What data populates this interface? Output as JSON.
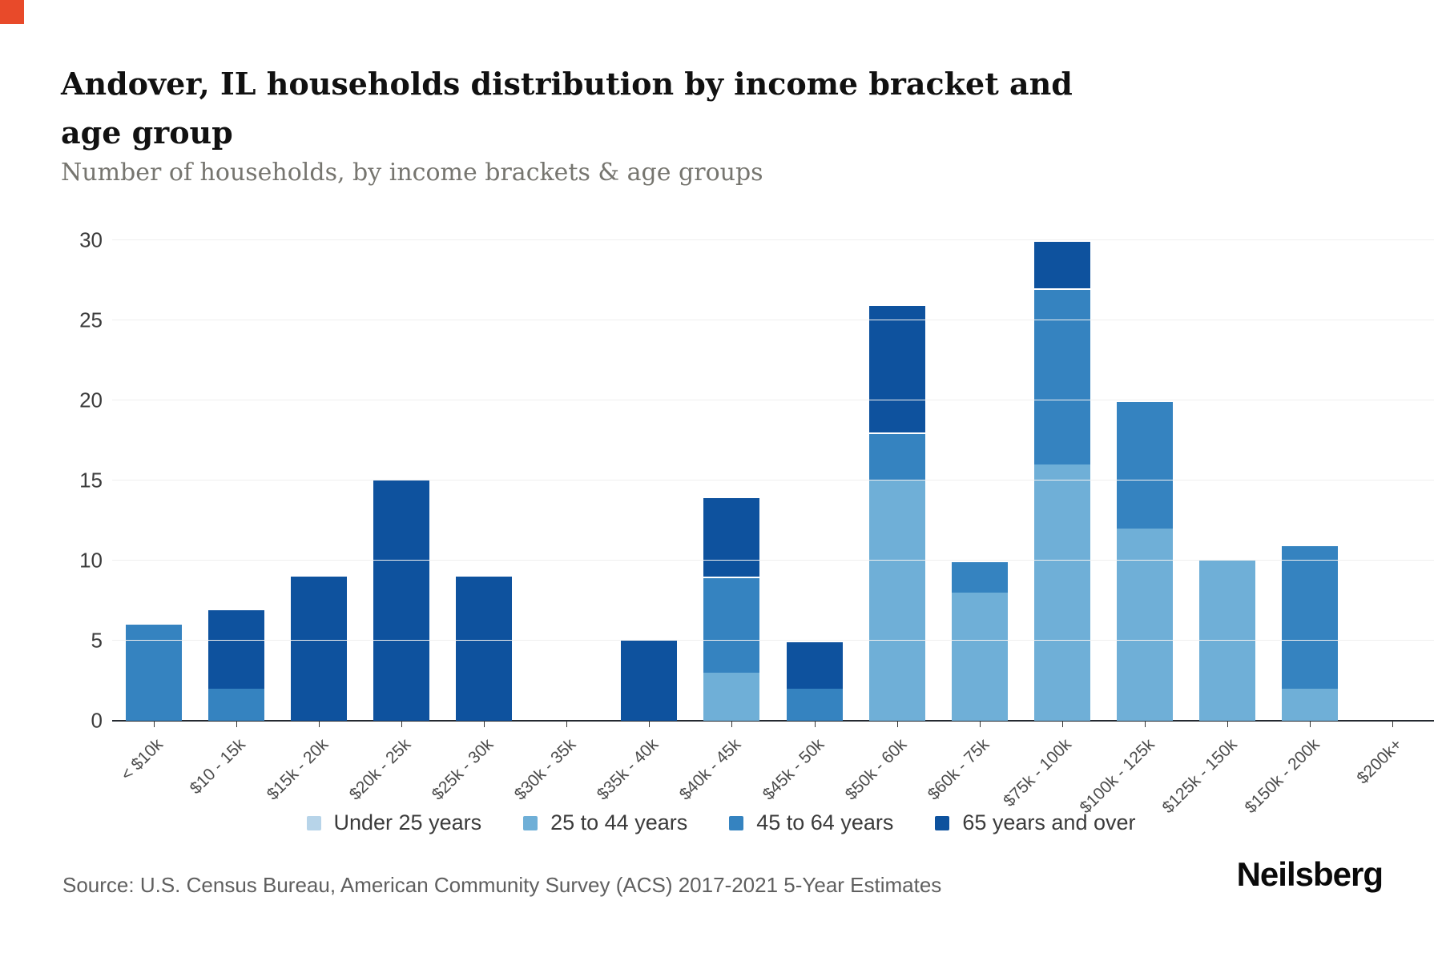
{
  "page": {
    "title": "Andover, IL households distribution by income bracket and age group",
    "subtitle": "Number of households, by income brackets & age groups",
    "source": "Source: U.S. Census Bureau, American Community Survey (ACS) 2017-2021 5-Year Estimates",
    "brand": "Neilsberg",
    "corner_marker_color": "#e84a2a"
  },
  "chart_data": {
    "type": "bar",
    "stacked": true,
    "title": "Andover, IL households distribution by income bracket and age group",
    "subtitle": "Number of households, by income brackets & age groups",
    "xlabel": "",
    "ylabel": "Number of households",
    "grid": true,
    "legend_position": "bottom",
    "ylim": [
      0,
      30
    ],
    "yticks": [
      0,
      5,
      10,
      15,
      20,
      25,
      30
    ],
    "categories": [
      "< $10k",
      "$10 - 15k",
      "$15k - 20k",
      "$20k - 25k",
      "$25k - 30k",
      "$30k - 35k",
      "$35k - 40k",
      "$40k - 45k",
      "$45k - 50k",
      "$50k - 60k",
      "$60k - 75k",
      "$75k - 100k",
      "$100k - 125k",
      "$125k - 150k",
      "$150k - 200k",
      "$200k+"
    ],
    "series": [
      {
        "name": "Under 25 years",
        "color": "#b7d4e9",
        "values": [
          0,
          0,
          0,
          0,
          0,
          0,
          0,
          0,
          0,
          0,
          0,
          0,
          0,
          0,
          0,
          0
        ]
      },
      {
        "name": "25 to 44 years",
        "color": "#6fafd7",
        "values": [
          0,
          0,
          0,
          0,
          0,
          0,
          0,
          3,
          0,
          15,
          8,
          16,
          12,
          10,
          2,
          0
        ]
      },
      {
        "name": "45 to 64 years",
        "color": "#3583c0",
        "values": [
          6,
          2,
          0,
          0,
          0,
          0,
          0,
          6,
          2,
          3,
          2,
          11,
          8,
          0,
          9,
          0
        ]
      },
      {
        "name": "65 years and over",
        "color": "#0e529e",
        "values": [
          0,
          5,
          9,
          15,
          9,
          0,
          5,
          5,
          3,
          8,
          0,
          3,
          0,
          0,
          0,
          0
        ]
      }
    ],
    "totals": [
      6,
      7,
      9,
      15,
      9,
      0,
      5,
      14,
      5,
      26,
      10,
      30,
      20,
      10,
      11,
      0
    ]
  }
}
